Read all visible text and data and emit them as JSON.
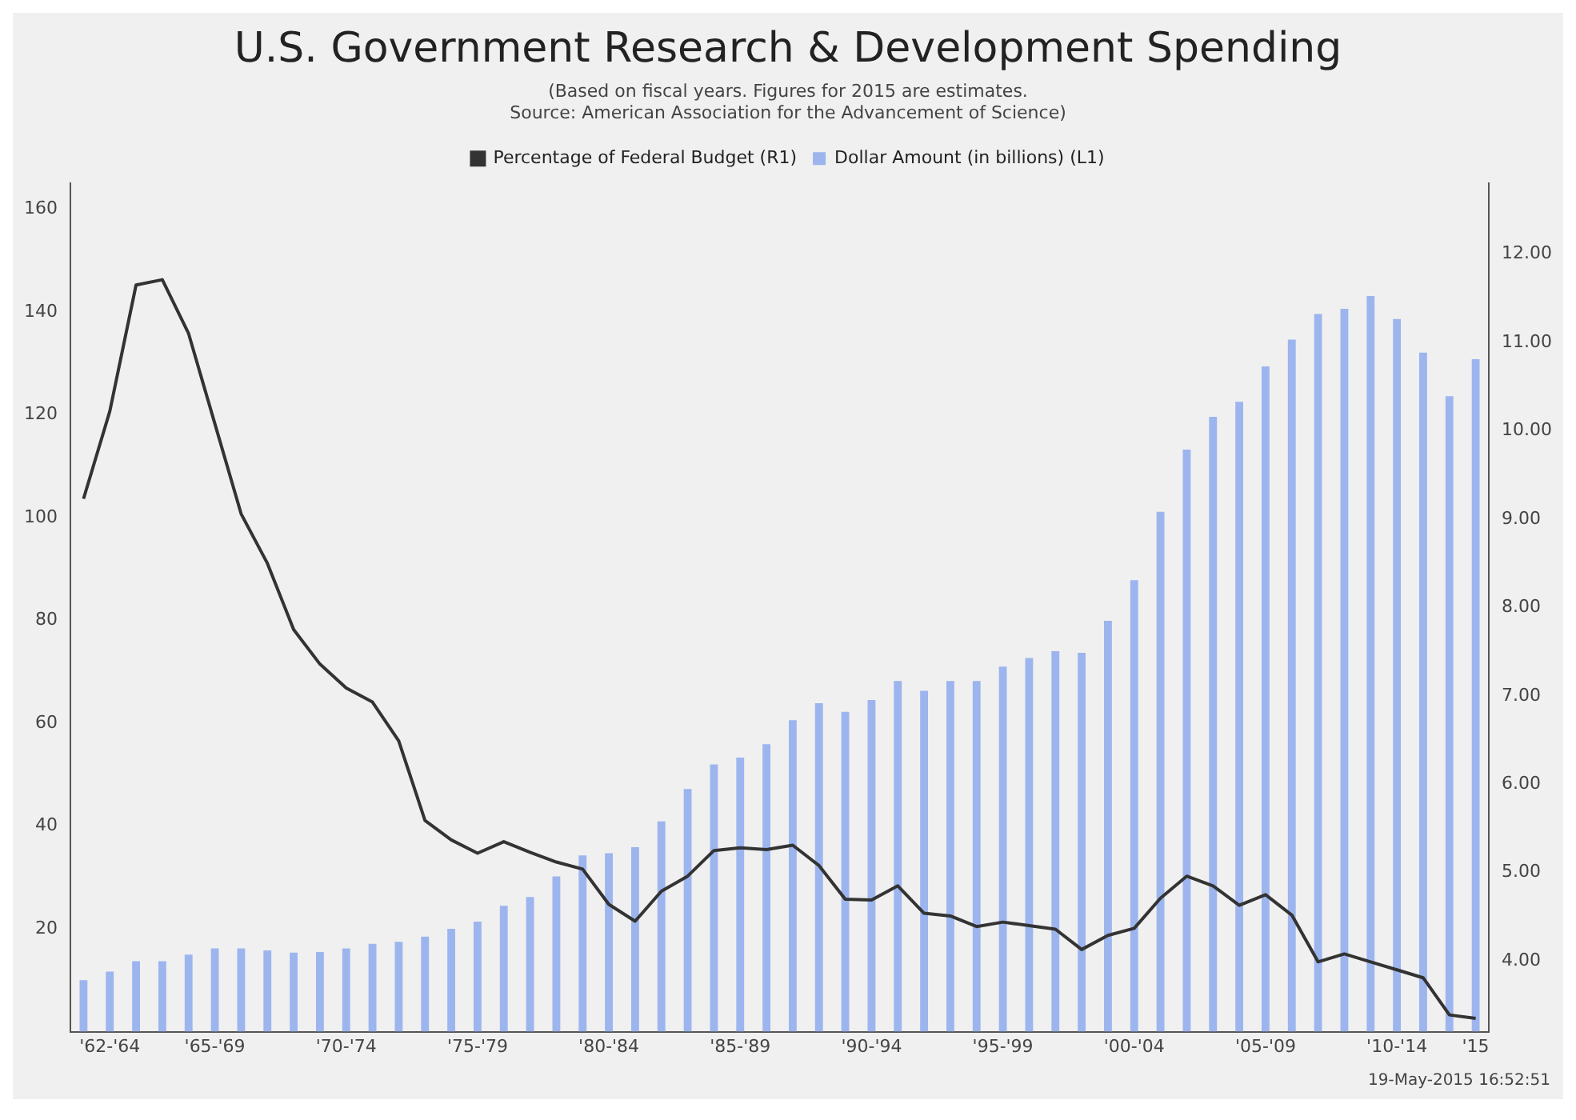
{
  "chart_data": {
    "type": "bar",
    "title": "U.S. Government Research & Development Spending",
    "subtitle": "(Based on fiscal years. Figures for 2015 are estimates.\nSource: American Association for the Advancement of Science)",
    "annotations": [
      "19-May-2015 16:52:51"
    ],
    "categories": [
      null,
      "'62-'64",
      null,
      null,
      null,
      "'65-'69",
      null,
      null,
      null,
      null,
      "'70-'74",
      null,
      null,
      null,
      null,
      "'75-'79",
      null,
      null,
      null,
      null,
      "'80-'84",
      null,
      null,
      null,
      null,
      "'85-'89",
      null,
      null,
      null,
      null,
      "'90-'94",
      null,
      null,
      null,
      null,
      "'95-'99",
      null,
      null,
      null,
      null,
      "'00-'04",
      null,
      null,
      null,
      null,
      "'05-'09",
      null,
      null,
      null,
      null,
      "'10-'14",
      null,
      null,
      "'15"
    ],
    "series": [
      {
        "name": "Percentage of Federal Budget (R1)",
        "type": "line",
        "axis": "y2",
        "color": "#333333",
        "values": [
          9.23,
          10.22,
          11.65,
          11.71,
          11.1,
          10.08,
          9.06,
          8.5,
          7.75,
          7.36,
          7.09,
          6.93,
          6.49,
          5.59,
          5.37,
          5.22,
          5.35,
          5.23,
          5.12,
          5.04,
          4.64,
          4.45,
          4.79,
          4.96,
          5.25,
          5.28,
          5.26,
          5.31,
          5.08,
          4.7,
          4.69,
          4.85,
          4.54,
          4.51,
          4.39,
          4.44,
          4.4,
          4.36,
          4.13,
          4.29,
          4.37,
          4.71,
          4.96,
          4.85,
          4.63,
          4.75,
          4.52,
          3.99,
          4.08,
          3.99,
          3.9,
          3.81,
          3.39,
          3.35
        ]
      },
      {
        "name": "Dollar Amount (in billions) (L1)",
        "color": "#9db5ee",
        "values": [
          10.0,
          11.7,
          13.7,
          13.7,
          15.0,
          16.2,
          16.2,
          15.8,
          15.4,
          15.5,
          16.2,
          17.1,
          17.5,
          18.5,
          20.0,
          21.4,
          24.5,
          26.2,
          30.2,
          34.3,
          34.7,
          35.9,
          40.9,
          47.2,
          52.0,
          53.3,
          55.9,
          60.6,
          63.9,
          62.2,
          64.5,
          68.2,
          66.3,
          68.2,
          68.2,
          71.0,
          72.7,
          74.0,
          73.7,
          79.9,
          87.8,
          101.1,
          113.2,
          119.6,
          122.5,
          129.4,
          134.6,
          139.6,
          140.6,
          143.1,
          138.6,
          132.1,
          123.6,
          130.8
        ]
      }
    ],
    "ylim": [
      0,
      165
    ],
    "yticks": [
      20,
      40,
      60,
      80,
      100,
      120,
      140,
      160
    ],
    "y2lim": [
      3.2,
      12.8
    ],
    "y2ticks": [
      {
        "value": 4,
        "label": "4.00"
      },
      {
        "value": 5,
        "label": "5.00"
      },
      {
        "value": 6,
        "label": "6.00"
      },
      {
        "value": 7,
        "label": "7.00"
      },
      {
        "value": 8,
        "label": "8.00"
      },
      {
        "value": 9,
        "label": "9.00"
      },
      {
        "value": 10,
        "label": "10.00"
      },
      {
        "value": 11,
        "label": "11.00"
      },
      {
        "value": 12,
        "label": "12.00"
      }
    ],
    "legend": "top",
    "grid": false,
    "marker": "none"
  }
}
